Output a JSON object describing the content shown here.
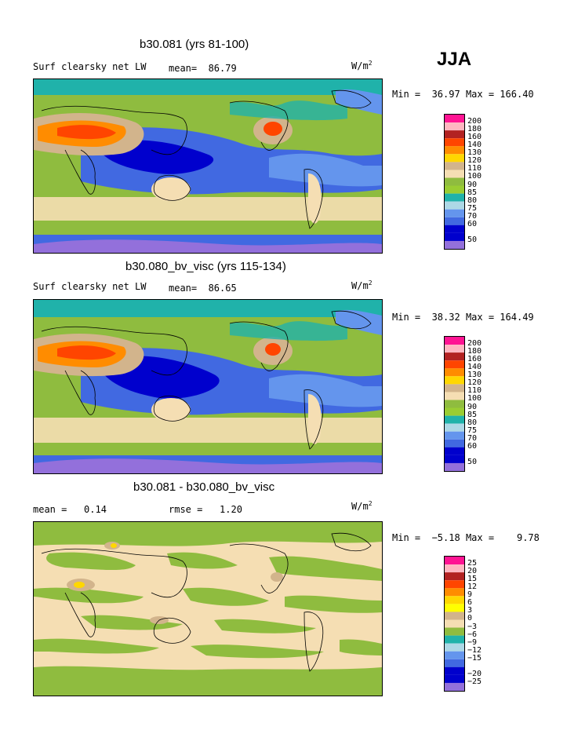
{
  "season": "JJA",
  "panels": [
    {
      "title": "b30.081 (yrs 81-100)",
      "variable": "Surf clearsky net LW",
      "stat1_label": "mean=",
      "stat1_value": "86.79",
      "stat2_label": "",
      "stat2_value": "",
      "units_base": "W/m",
      "units_exp": "2",
      "min_label": "Min =",
      "min_value": "36.97",
      "max_label": "Max =",
      "max_value": "166.40",
      "colorbar_labels": [
        "200",
        "180",
        "160",
        "140",
        "130",
        "120",
        "110",
        "100",
        "90",
        "85",
        "80",
        "75",
        "70",
        "60",
        "50"
      ]
    },
    {
      "title": "b30.080_bv_visc (yrs 115-134)",
      "variable": "Surf clearsky net LW",
      "stat1_label": "mean=",
      "stat1_value": "86.65",
      "stat2_label": "",
      "stat2_value": "",
      "units_base": "W/m",
      "units_exp": "2",
      "min_label": "Min =",
      "min_value": "38.32",
      "max_label": "Max =",
      "max_value": "164.49",
      "colorbar_labels": [
        "200",
        "180",
        "160",
        "140",
        "130",
        "120",
        "110",
        "100",
        "90",
        "85",
        "80",
        "75",
        "70",
        "60",
        "50"
      ]
    },
    {
      "title": "b30.081 - b30.080_bv_visc",
      "variable": "",
      "stat1_label": "mean =",
      "stat1_value": "0.14",
      "stat2_label": "rmse =",
      "stat2_value": "1.20",
      "units_base": "W/m",
      "units_exp": "2",
      "min_label": "Min =",
      "min_value": "−5.18",
      "max_label": "Max =",
      "max_value": "9.78",
      "colorbar_labels": [
        "25",
        "20",
        "15",
        "12",
        "9",
        "6",
        "3",
        "0",
        "−3",
        "−6",
        "−9",
        "−12",
        "−15",
        "−20",
        "−25"
      ]
    }
  ],
  "colors": {
    "colorbar": [
      "#ff1493",
      "#ffb6c1",
      "#b22222",
      "#ff4500",
      "#ff8c00",
      "#ffd700",
      "#ffff00",
      "#d2b48c",
      "#f5deb3",
      "#8fbc3f",
      "#9acd32",
      "#20b2aa",
      "#add8e6",
      "#6495ed",
      "#4169e1",
      "#0000cd",
      "#9370db"
    ],
    "ocean_deep": "#1a2bd6",
    "ocean_mid": "#4169e1",
    "ocean_light": "#6495ed",
    "teal": "#20b2aa",
    "green": "#8fbc3f",
    "tan": "#f5deb3",
    "sand": "#d2b48c",
    "orange": "#ff4500",
    "yellow": "#ffd700",
    "cyan": "#add8e6"
  },
  "chart_data": [
    {
      "type": "heatmap",
      "title": "b30.081 (yrs 81-100)",
      "subtitle": "Surf clearsky net LW",
      "season": "JJA",
      "mean": 86.79,
      "min": 36.97,
      "max": 166.4,
      "units": "W/m2",
      "contour_levels": [
        50,
        60,
        70,
        75,
        80,
        85,
        90,
        100,
        110,
        120,
        130,
        140,
        160,
        180,
        200
      ]
    },
    {
      "type": "heatmap",
      "title": "b30.080_bv_visc (yrs 115-134)",
      "subtitle": "Surf clearsky net LW",
      "season": "JJA",
      "mean": 86.65,
      "min": 38.32,
      "max": 164.49,
      "units": "W/m2",
      "contour_levels": [
        50,
        60,
        70,
        75,
        80,
        85,
        90,
        100,
        110,
        120,
        130,
        140,
        160,
        180,
        200
      ]
    },
    {
      "type": "heatmap",
      "title": "b30.081 - b30.080_bv_visc",
      "season": "JJA",
      "mean": 0.14,
      "rmse": 1.2,
      "min": -5.18,
      "max": 9.78,
      "units": "W/m2",
      "contour_levels": [
        -25,
        -20,
        -15,
        -12,
        -9,
        -6,
        -3,
        0,
        3,
        6,
        9,
        12,
        15,
        20,
        25
      ]
    }
  ]
}
